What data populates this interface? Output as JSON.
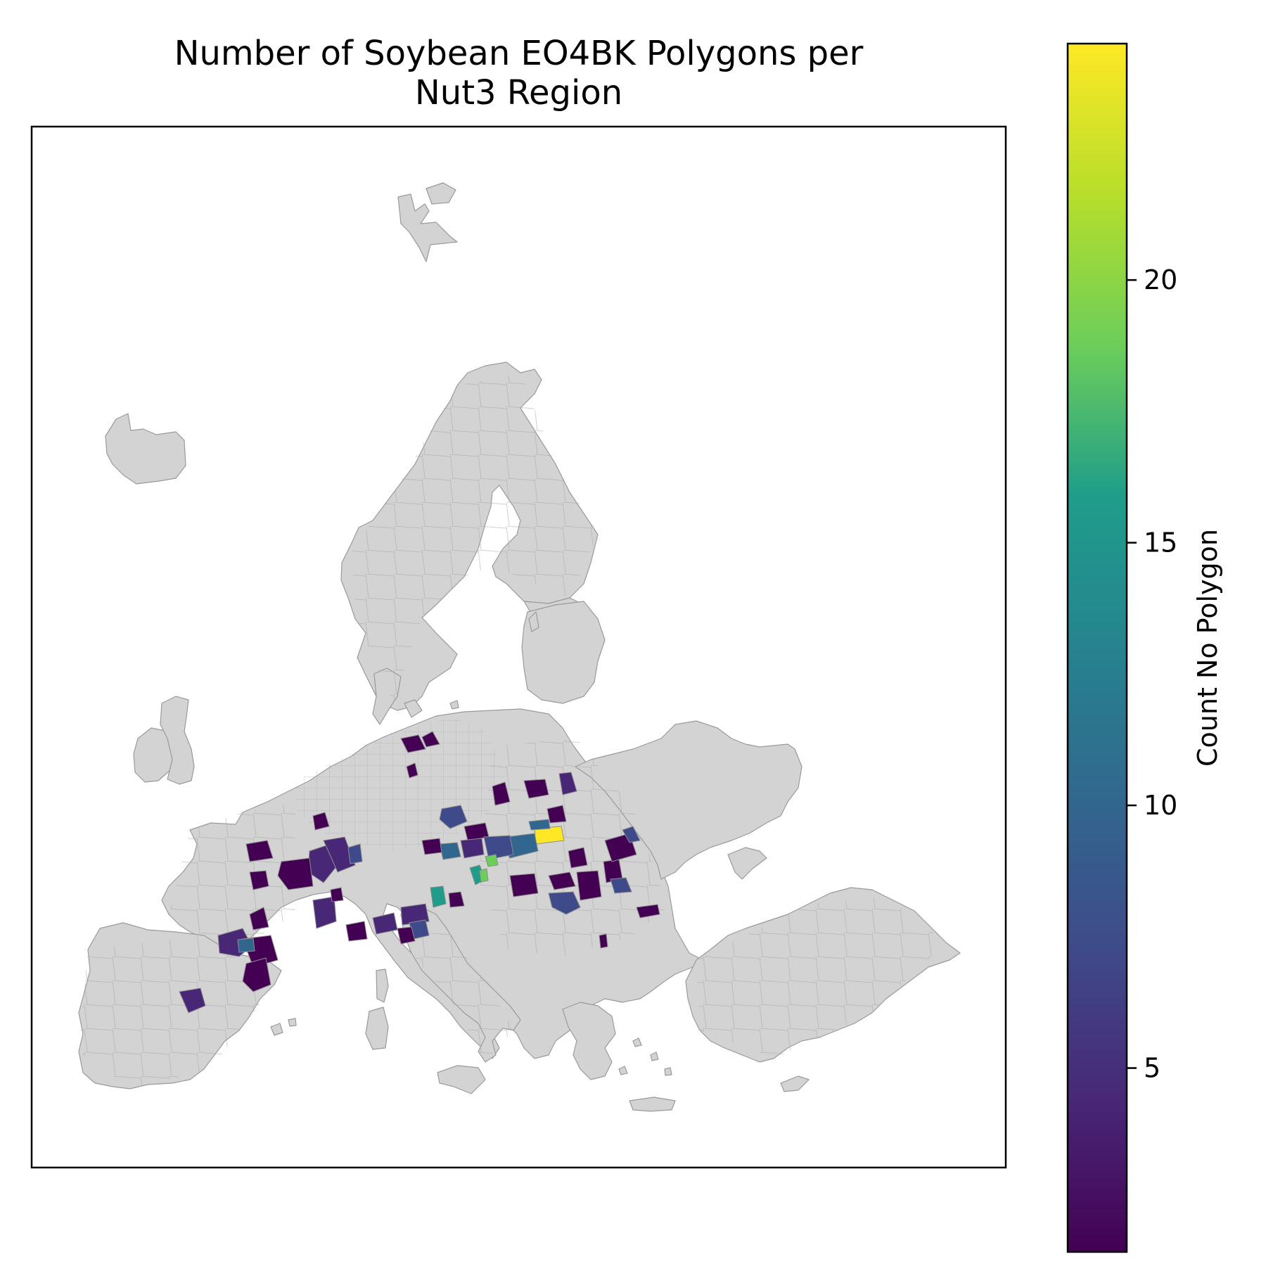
{
  "title_lines": [
    "Number of Soybean EO4BK Polygons per",
    "Nut3 Region"
  ],
  "colorbar": {
    "label": "Count No Polygon",
    "min": 1.5,
    "max": 24.5,
    "ticks": [
      5,
      10,
      15,
      20
    ],
    "colormap": "viridis",
    "stops": [
      "#440154",
      "#482777",
      "#3f4a8a",
      "#31678e",
      "#26838f",
      "#1f9d8a",
      "#6cce5a",
      "#b6de2b",
      "#fee825"
    ]
  },
  "map": {
    "background_region_color": "#d3d3d3",
    "boundary_color": "#9a9a9a",
    "axes_frame": true
  },
  "chart_data": {
    "type": "choropleth",
    "title": "Number of Soybean EO4BK Polygons per Nut3 Region",
    "colorbar_label": "Count No Polygon",
    "value_range": [
      1.5,
      24.5
    ],
    "regions": [
      {
        "area": "Southern Poland / Slovakia border",
        "value": 24
      },
      {
        "area": "Northern Croatia",
        "value": 19
      },
      {
        "area": "Slovenia",
        "value": 17
      },
      {
        "area": "Hungary west",
        "value": 18
      },
      {
        "area": "Slovakia southwest",
        "value": 11
      },
      {
        "area": "Slovakia / Hungary",
        "value": 10
      },
      {
        "area": "Spain Ebro valley",
        "value": 9
      },
      {
        "area": "Austria east",
        "value": 9
      },
      {
        "area": "Romania west",
        "value": 7
      },
      {
        "area": "Romania central",
        "value": 6
      },
      {
        "area": "Czechia south",
        "value": 6
      },
      {
        "area": "Poland southeast",
        "value": 5
      },
      {
        "area": "Moldova",
        "value": 5
      },
      {
        "area": "Spain central",
        "value": 4
      },
      {
        "area": "France east",
        "value": 3
      },
      {
        "area": "Italy north (Po)",
        "value": 3
      },
      {
        "area": "France southwest",
        "value": 2
      },
      {
        "area": "Germany north",
        "value": 2
      },
      {
        "area": "Bulgaria",
        "value": 2
      }
    ]
  }
}
